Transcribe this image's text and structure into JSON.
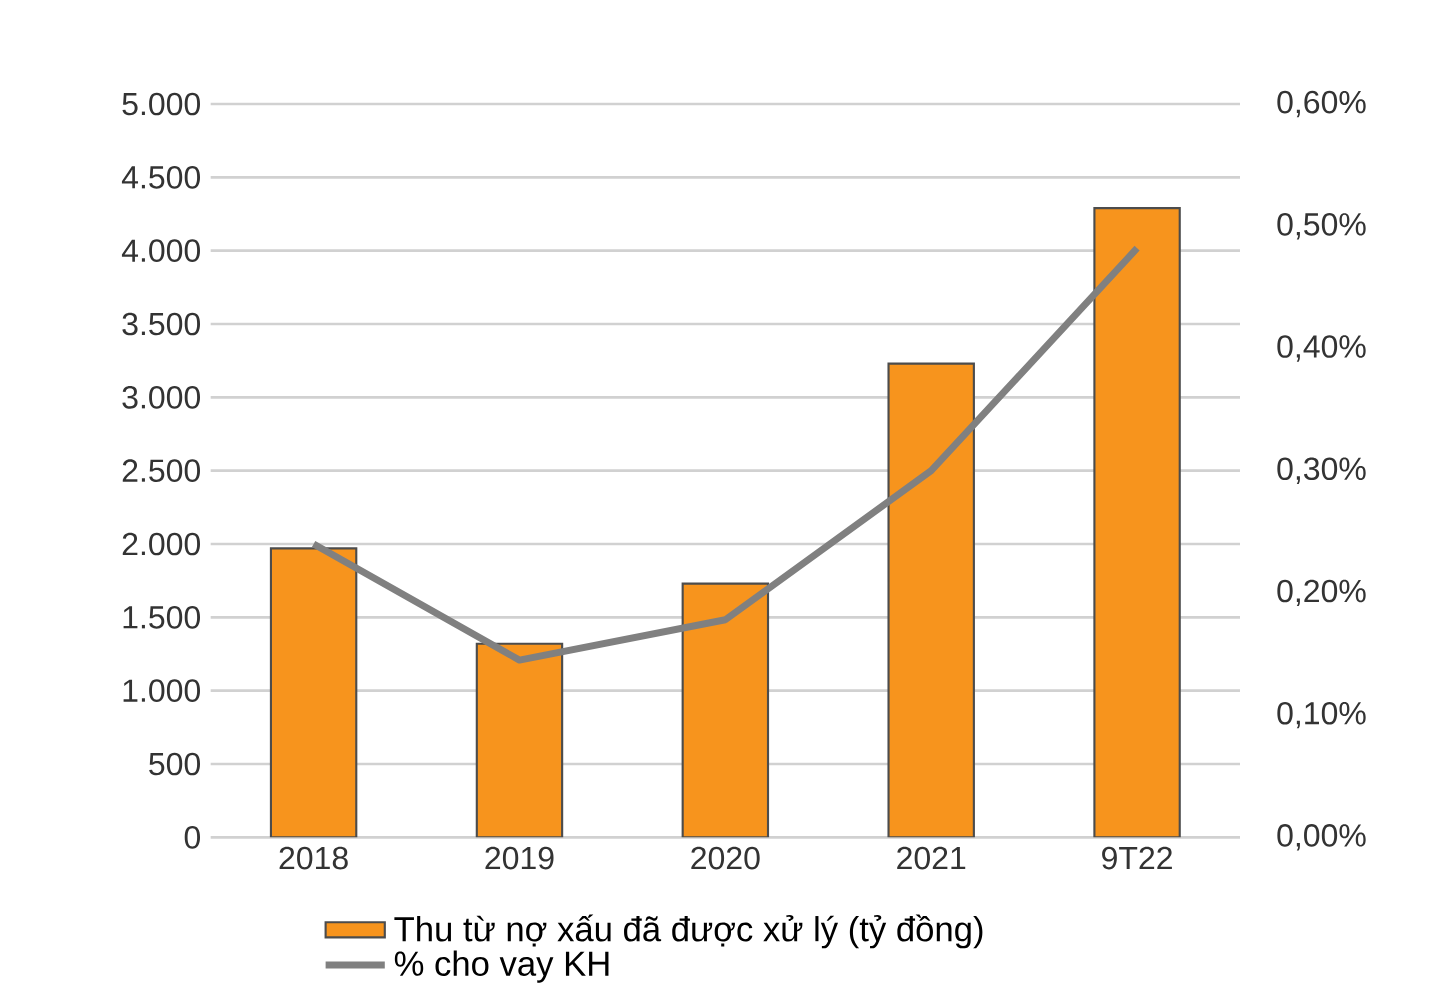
{
  "chart_data": {
    "type": "bar",
    "categories": [
      "2018",
      "2019",
      "2020",
      "2021",
      "9T22"
    ],
    "series": [
      {
        "name": "Thu từ nợ xấu đã được xử lý (tỷ đồng)",
        "color": "#f7941d",
        "values": [
          1970,
          1320,
          1730,
          3230,
          4290
        ]
      },
      {
        "name": "% cho vay KH",
        "type": "line",
        "axis": "y2",
        "color": "#808080",
        "marker": "none",
        "values": [
          0.24,
          0.145,
          0.178,
          0.3,
          0.482
        ]
      }
    ],
    "ylim": [
      0,
      5000
    ],
    "yticks": [
      {
        "value": 0,
        "label": "0"
      },
      {
        "value": 500,
        "label": "500"
      },
      {
        "value": 1000,
        "label": "1.000"
      },
      {
        "value": 1500,
        "label": "1.500"
      },
      {
        "value": 2000,
        "label": "2.000"
      },
      {
        "value": 2500,
        "label": "2.500"
      },
      {
        "value": 3000,
        "label": "3.000"
      },
      {
        "value": 3500,
        "label": "3.500"
      },
      {
        "value": 4000,
        "label": "4.000"
      },
      {
        "value": 4500,
        "label": "4.500"
      },
      {
        "value": 5000,
        "label": "5.000"
      }
    ],
    "y2lim": [
      0,
      0.6
    ],
    "y2ticks": [
      {
        "value": 0,
        "label": "0,00%"
      },
      {
        "value": 0.1,
        "label": "0,10%"
      },
      {
        "value": 0.2,
        "label": "0,20%"
      },
      {
        "value": 0.3,
        "label": "0,30%"
      },
      {
        "value": 0.4,
        "label": "0,40%"
      },
      {
        "value": 0.5,
        "label": "0,50%"
      },
      {
        "value": 0.6,
        "label": "0,60%"
      }
    ],
    "grid": "y",
    "legend": "bottom"
  }
}
